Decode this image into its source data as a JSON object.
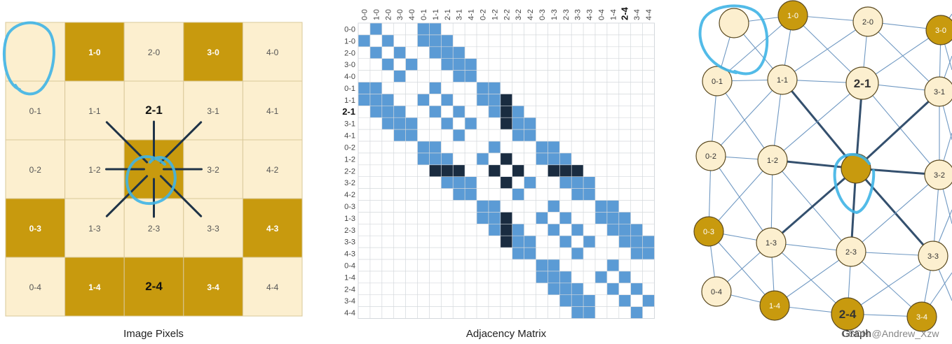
{
  "image_pixels": {
    "caption": "Image Pixels",
    "colors": {
      "light": "#fcefcf",
      "dark": "#c89a0e",
      "grid": "#d9c89a",
      "spokes": "#1f3347"
    },
    "rows": [
      [
        {
          "label": "",
          "dark": false
        },
        {
          "label": "1-0",
          "dark": true
        },
        {
          "label": "2-0",
          "dark": false
        },
        {
          "label": "3-0",
          "dark": true
        },
        {
          "label": "4-0",
          "dark": false
        }
      ],
      [
        {
          "label": "0-1",
          "dark": false
        },
        {
          "label": "1-1",
          "dark": false
        },
        {
          "label": "2-1",
          "dark": false,
          "bold": true
        },
        {
          "label": "3-1",
          "dark": false
        },
        {
          "label": "4-1",
          "dark": false
        }
      ],
      [
        {
          "label": "0-2",
          "dark": false
        },
        {
          "label": "1-2",
          "dark": false
        },
        {
          "label": "",
          "dark": true
        },
        {
          "label": "3-2",
          "dark": false
        },
        {
          "label": "4-2",
          "dark": false
        }
      ],
      [
        {
          "label": "0-3",
          "dark": true
        },
        {
          "label": "1-3",
          "dark": false
        },
        {
          "label": "2-3",
          "dark": false
        },
        {
          "label": "3-3",
          "dark": false
        },
        {
          "label": "4-3",
          "dark": true
        }
      ],
      [
        {
          "label": "0-4",
          "dark": false
        },
        {
          "label": "1-4",
          "dark": true
        },
        {
          "label": "2-4",
          "dark": true,
          "bold": true
        },
        {
          "label": "3-4",
          "dark": true
        },
        {
          "label": "4-4",
          "dark": false
        }
      ]
    ]
  },
  "adjacency_matrix": {
    "caption": "Adjacency Matrix",
    "labels": [
      "0-0",
      "1-0",
      "2-0",
      "3-0",
      "4-0",
      "0-1",
      "1-1",
      "2-1",
      "3-1",
      "4-1",
      "0-2",
      "1-2",
      "2-2",
      "3-2",
      "4-2",
      "0-3",
      "1-3",
      "2-3",
      "3-3",
      "4-3",
      "0-4",
      "1-4",
      "2-4",
      "3-4",
      "4-4"
    ],
    "bold_row": "2-1",
    "bold_col": "2-4",
    "colors": {
      "edge": "#5b9bd5",
      "highlight": "#1a2c40",
      "grid": "#d4d8dc"
    }
  },
  "graph": {
    "caption": "Graph",
    "colors": {
      "light": "#fcefcf",
      "dark": "#c89a0e",
      "edge": "#6f98c2",
      "strong_edge": "#34506e",
      "stroke": "#5b4a20"
    },
    "nodes": [
      {
        "id": "0-0",
        "label": "",
        "dark": false
      },
      {
        "id": "1-0",
        "label": "1-0",
        "dark": true
      },
      {
        "id": "2-0",
        "label": "2-0",
        "dark": false
      },
      {
        "id": "3-0",
        "label": "3-0",
        "dark": true
      },
      {
        "id": "0-1",
        "label": "0-1",
        "dark": false
      },
      {
        "id": "1-1",
        "label": "1-1",
        "dark": false
      },
      {
        "id": "2-1",
        "label": "2-1",
        "dark": false,
        "bold": true
      },
      {
        "id": "3-1",
        "label": "3-1",
        "dark": false
      },
      {
        "id": "0-2",
        "label": "0-2",
        "dark": false
      },
      {
        "id": "1-2",
        "label": "1-2",
        "dark": false
      },
      {
        "id": "2-2",
        "label": "",
        "dark": true
      },
      {
        "id": "3-2",
        "label": "3-2",
        "dark": false
      },
      {
        "id": "0-3",
        "label": "0-3",
        "dark": true
      },
      {
        "id": "1-3",
        "label": "1-3",
        "dark": false
      },
      {
        "id": "2-3",
        "label": "2-3",
        "dark": false
      },
      {
        "id": "3-3",
        "label": "3-3",
        "dark": false
      },
      {
        "id": "0-4",
        "label": "0-4",
        "dark": false
      },
      {
        "id": "1-4",
        "label": "1-4",
        "dark": true
      },
      {
        "id": "2-4",
        "label": "2-4",
        "dark": true,
        "bold": true
      },
      {
        "id": "3-4",
        "label": "3-4",
        "dark": true
      }
    ]
  },
  "watermark": "CSDN @Andrew_Xzw",
  "annotation_color": "#3fb4e6"
}
